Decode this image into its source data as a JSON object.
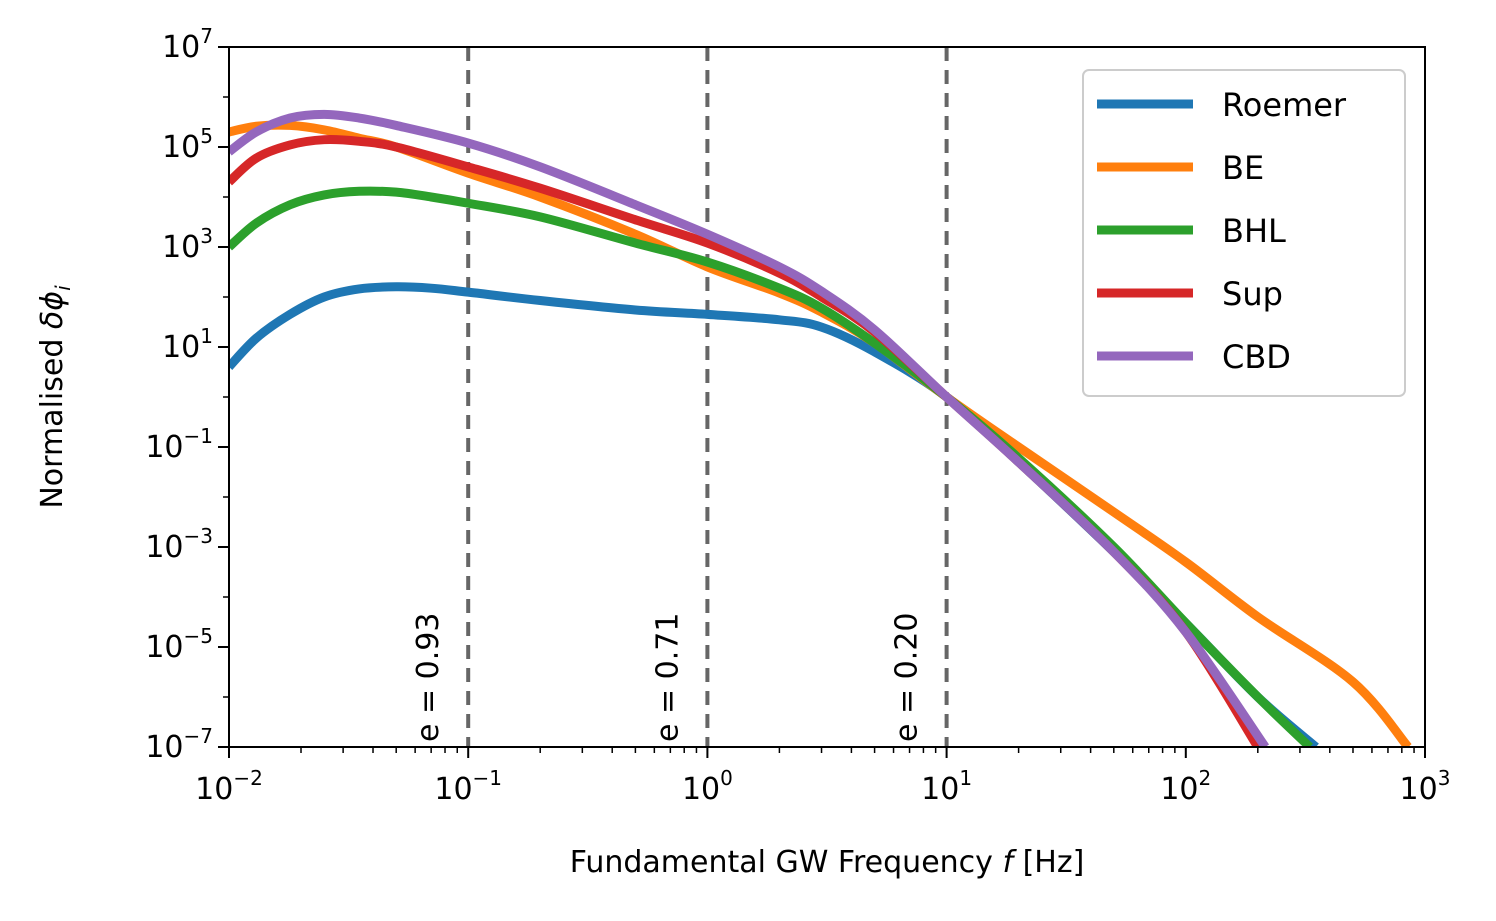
{
  "chart_data": {
    "type": "line",
    "xscale": "log",
    "yscale": "log",
    "xlabel": "Fundamental GW Frequency",
    "xlabel_var": "f",
    "xlabel_unit": "[Hz]",
    "ylabel": "Normalised",
    "ylabel_var": "δϕ",
    "ylabel_sub": "i",
    "xlim": [
      0.01,
      1000
    ],
    "ylim": [
      1e-07,
      10000000.0
    ],
    "xticks": [
      {
        "base": "10",
        "exp": "−2",
        "value": 0.01
      },
      {
        "base": "10",
        "exp": "−1",
        "value": 0.1
      },
      {
        "base": "10",
        "exp": "0",
        "value": 1
      },
      {
        "base": "10",
        "exp": "1",
        "value": 10
      },
      {
        "base": "10",
        "exp": "2",
        "value": 100
      },
      {
        "base": "10",
        "exp": "3",
        "value": 1000
      }
    ],
    "yticks": [
      {
        "base": "10",
        "exp": "7",
        "value": 10000000.0
      },
      {
        "base": "10",
        "exp": "5",
        "value": 100000.0
      },
      {
        "base": "10",
        "exp": "3",
        "value": 1000.0
      },
      {
        "base": "10",
        "exp": "1",
        "value": 10.0
      },
      {
        "base": "10",
        "exp": "−1",
        "value": 0.1
      },
      {
        "base": "10",
        "exp": "−3",
        "value": 0.001
      },
      {
        "base": "10",
        "exp": "−5",
        "value": 1e-05
      },
      {
        "base": "10",
        "exp": "−7",
        "value": 1e-07
      }
    ],
    "vlines": [
      {
        "x": 0.1,
        "label": "e = 0.93"
      },
      {
        "x": 1,
        "label": "e = 0.71"
      },
      {
        "x": 10,
        "label": "e = 0.20"
      }
    ],
    "legend_position": "upper-right",
    "series": [
      {
        "name": "Roemer",
        "color": "#1f77b4",
        "points": [
          [
            0.01,
            4
          ],
          [
            0.013,
            15
          ],
          [
            0.018,
            45
          ],
          [
            0.025,
            100
          ],
          [
            0.035,
            145
          ],
          [
            0.05,
            160
          ],
          [
            0.07,
            150
          ],
          [
            0.1,
            125
          ],
          [
            0.2,
            85
          ],
          [
            0.5,
            55
          ],
          [
            1,
            45
          ],
          [
            2,
            35
          ],
          [
            3,
            25
          ],
          [
            5,
            8
          ],
          [
            10,
            1
          ],
          [
            20,
            0.05
          ],
          [
            50,
            0.0008
          ],
          [
            100,
            3e-05
          ],
          [
            200,
            1e-06
          ],
          [
            350,
            1e-07
          ]
        ]
      },
      {
        "name": "BE",
        "color": "#ff7f0e",
        "points": [
          [
            0.01,
            200000
          ],
          [
            0.013,
            260000
          ],
          [
            0.018,
            270000
          ],
          [
            0.025,
            220000
          ],
          [
            0.035,
            150000
          ],
          [
            0.05,
            100000
          ],
          [
            0.1,
            30000
          ],
          [
            0.2,
            10000
          ],
          [
            0.5,
            1800
          ],
          [
            1,
            400
          ],
          [
            2,
            120
          ],
          [
            3,
            50
          ],
          [
            5,
            12
          ],
          [
            10,
            1
          ],
          [
            20,
            0.1
          ],
          [
            50,
            0.005
          ],
          [
            100,
            0.0005
          ],
          [
            200,
            4e-05
          ],
          [
            500,
            2e-06
          ],
          [
            850,
            1e-07
          ]
        ]
      },
      {
        "name": "BHL",
        "color": "#2ca02c",
        "points": [
          [
            0.01,
            1000
          ],
          [
            0.013,
            3000
          ],
          [
            0.018,
            7000
          ],
          [
            0.025,
            11000
          ],
          [
            0.035,
            13000
          ],
          [
            0.05,
            12500
          ],
          [
            0.07,
            10000
          ],
          [
            0.1,
            7500
          ],
          [
            0.2,
            4000
          ],
          [
            0.5,
            1200
          ],
          [
            1,
            500
          ],
          [
            2,
            150
          ],
          [
            3,
            60
          ],
          [
            5,
            12
          ],
          [
            10,
            1
          ],
          [
            20,
            0.06
          ],
          [
            50,
            0.001
          ],
          [
            100,
            3e-05
          ],
          [
            200,
            1e-06
          ],
          [
            330,
            1e-07
          ]
        ]
      },
      {
        "name": "Sup",
        "color": "#d62728",
        "points": [
          [
            0.01,
            20000
          ],
          [
            0.013,
            60000
          ],
          [
            0.018,
            110000
          ],
          [
            0.025,
            140000
          ],
          [
            0.035,
            130000
          ],
          [
            0.05,
            100000
          ],
          [
            0.1,
            40000
          ],
          [
            0.2,
            15000
          ],
          [
            0.5,
            3500
          ],
          [
            1,
            1200
          ],
          [
            2,
            300
          ],
          [
            3,
            100
          ],
          [
            5,
            20
          ],
          [
            10,
            1
          ],
          [
            20,
            0.05
          ],
          [
            50,
            0.0008
          ],
          [
            100,
            2e-05
          ],
          [
            200,
            1e-07
          ]
        ]
      },
      {
        "name": "CBD",
        "color": "#9467bd",
        "points": [
          [
            0.01,
            80000
          ],
          [
            0.013,
            200000
          ],
          [
            0.018,
            380000
          ],
          [
            0.025,
            450000
          ],
          [
            0.035,
            380000
          ],
          [
            0.05,
            270000
          ],
          [
            0.1,
            120000
          ],
          [
            0.2,
            40000
          ],
          [
            0.5,
            7000
          ],
          [
            1,
            1800
          ],
          [
            2,
            400
          ],
          [
            3,
            130
          ],
          [
            5,
            22
          ],
          [
            10,
            1
          ],
          [
            20,
            0.05
          ],
          [
            50,
            0.0008
          ],
          [
            100,
            2e-05
          ],
          [
            215,
            1e-07
          ]
        ]
      }
    ]
  }
}
